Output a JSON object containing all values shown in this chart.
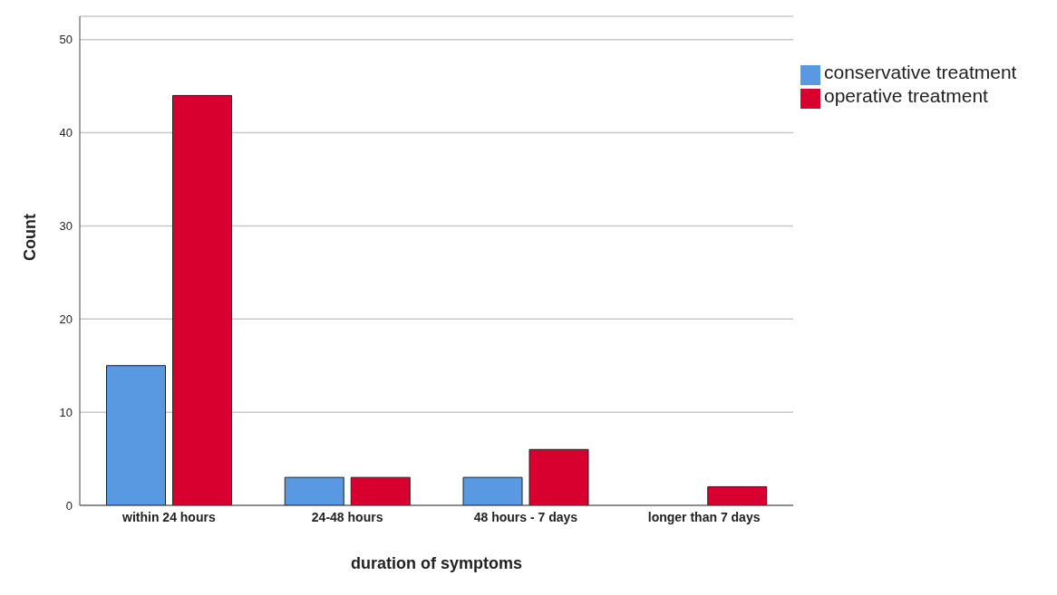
{
  "chart_data": {
    "type": "bar",
    "xlabel": "duration of symptoms",
    "ylabel": "Count",
    "categories": [
      "within 24 hours",
      "24-48 hours",
      "48 hours - 7 days",
      "longer than 7 days"
    ],
    "series": [
      {
        "name": "conservative treatment",
        "color": "#5899e2",
        "values": [
          15,
          3,
          3,
          0
        ]
      },
      {
        "name": "operative treatment",
        "color": "#d7002f",
        "values": [
          44,
          3,
          6,
          2
        ]
      }
    ],
    "ylim": [
      0,
      52.5
    ],
    "yticks": [
      0,
      10,
      20,
      30,
      40,
      50
    ],
    "grid": "y",
    "legend": "top right"
  }
}
